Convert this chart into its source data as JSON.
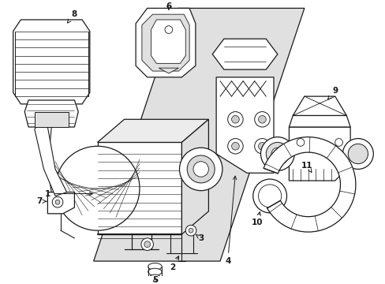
{
  "bg_color": "#ffffff",
  "line_color": "#1a1a1a",
  "shade_color": "#e0e0e0",
  "fig_width": 4.89,
  "fig_height": 3.6,
  "dpi": 100
}
